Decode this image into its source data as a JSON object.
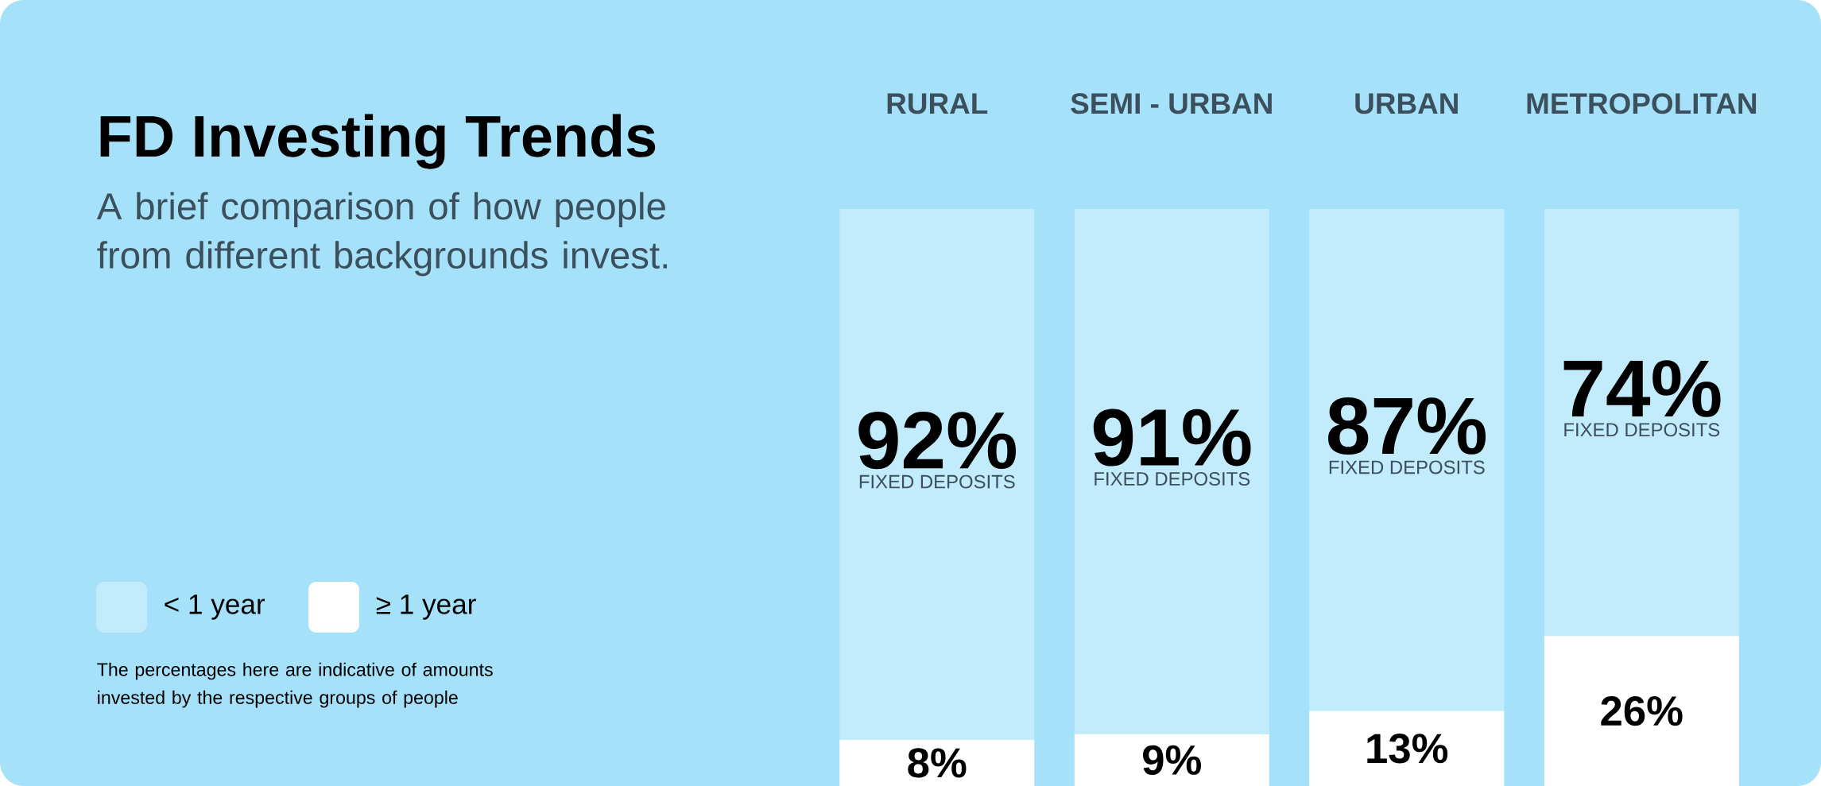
{
  "chart_data": {
    "type": "bar",
    "stacked": true,
    "title": "FD Investing Trends",
    "subtitle": "A brief comparison of how people from different backgrounds invest.",
    "categories": [
      "RURAL",
      "SEMI - URBAN",
      "URBAN",
      "METROPOLITAN"
    ],
    "series": [
      {
        "name": "≥ 1 year",
        "color": "#ffffff",
        "values": [
          8,
          9,
          13,
          26
        ],
        "value_labels": [
          "8%",
          "9%",
          "13%",
          "26%"
        ]
      },
      {
        "name": "< 1 year",
        "color": "#c2ebfc",
        "values": [
          92,
          91,
          87,
          74
        ],
        "value_labels": [
          "92%",
          "91%",
          "87%",
          "74%"
        ]
      }
    ],
    "legend": "left",
    "annotations": [
      "FIXED DEPOSITS",
      "FIXED DEPOSITS",
      "FIXED DEPOSITS",
      "FIXED DEPOSITS",
      "The percentages here are indicative of amounts invested by the respective groups of people"
    ]
  }
}
